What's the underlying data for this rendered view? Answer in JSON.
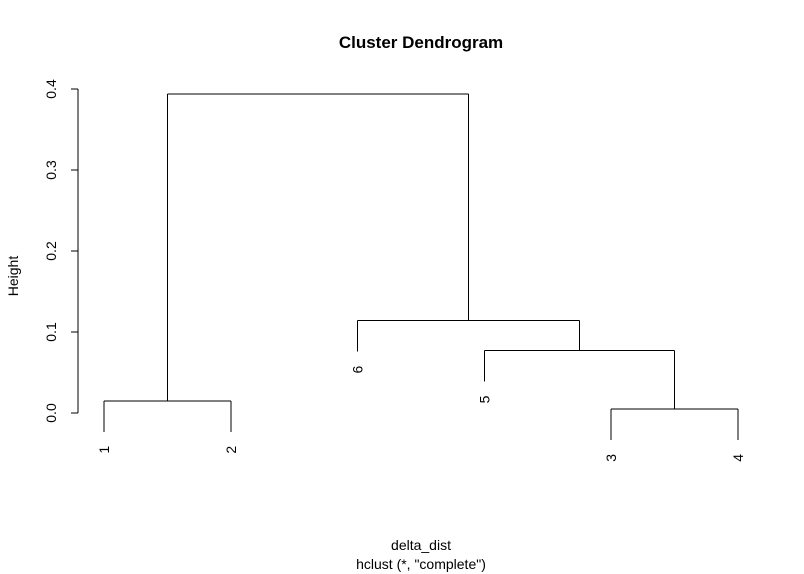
{
  "chart_data": {
    "type": "dendrogram",
    "title": "Cluster Dendrogram",
    "xlabel": "delta_dist",
    "sub": "hclust (*, \"complete\")",
    "ylabel": "Height",
    "ylim": [
      0,
      0.4
    ],
    "yticks": [
      "0.0",
      "0.1",
      "0.2",
      "0.3",
      "0.4"
    ],
    "yticks_values": [
      0,
      0.1,
      0.2,
      0.3,
      0.4
    ],
    "leaf_order": [
      "1",
      "2",
      "6",
      "5",
      "3",
      "4"
    ],
    "merges": [
      {
        "left": "3",
        "right": "4",
        "height": 0.005
      },
      {
        "left": "1",
        "right": "2",
        "height": 0.015
      },
      {
        "left": "5",
        "right": "{3,4}",
        "height": 0.077
      },
      {
        "left": "6",
        "right": "{5,3,4}",
        "height": 0.114
      },
      {
        "left": "{1,2}",
        "right": "{6,5,3,4}",
        "height": 0.394
      }
    ]
  }
}
